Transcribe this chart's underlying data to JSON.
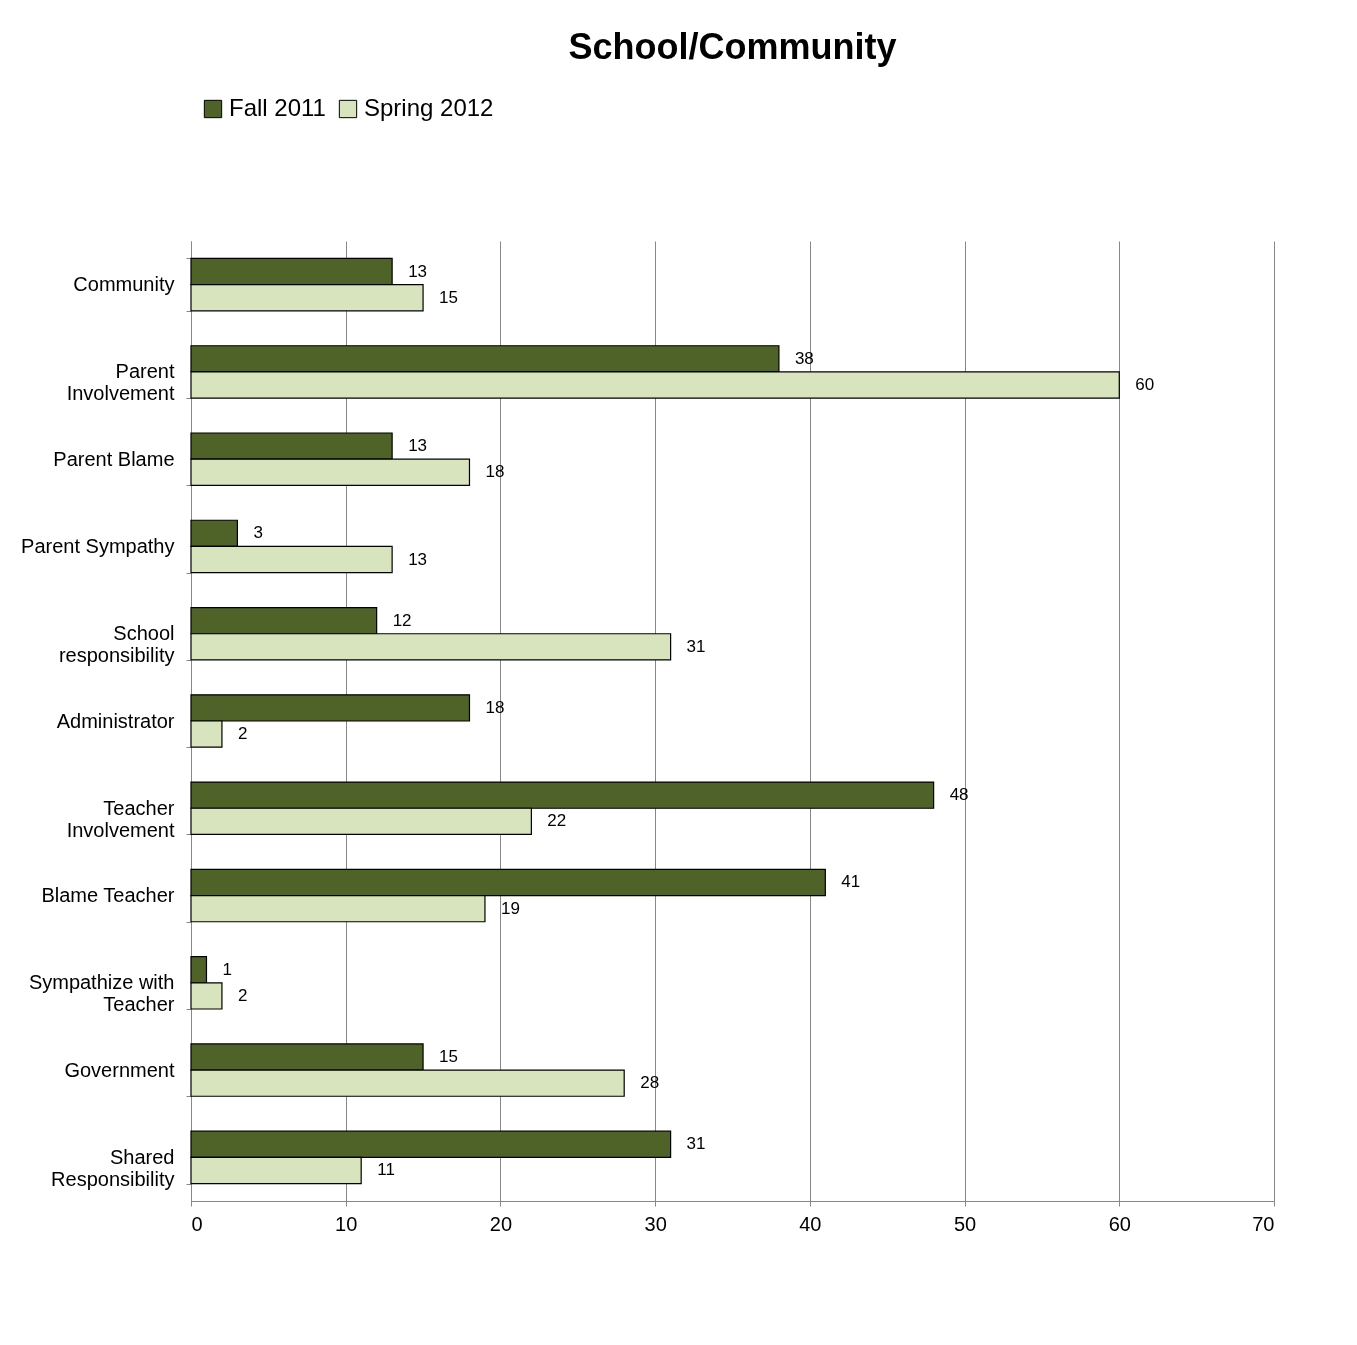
{
  "chart_data": {
    "type": "bar",
    "orientation": "horizontal",
    "title": "School/Community",
    "categories": [
      "Community",
      "Parent Involvement",
      "Parent Blame",
      "Parent Sympathy",
      "School responsibility",
      "Administrator",
      "Teacher Involvement",
      "Blame Teacher",
      "Sympathize with Teacher",
      "Government",
      "Shared Responsibility"
    ],
    "series": [
      {
        "name": "Fall 2011",
        "color": "#4f6228",
        "values": [
          13,
          38,
          13,
          3,
          12,
          18,
          48,
          41,
          1,
          15,
          31
        ]
      },
      {
        "name": "Spring 2012",
        "color": "#d7e4bd",
        "values": [
          15,
          60,
          18,
          13,
          31,
          2,
          22,
          19,
          2,
          28,
          11
        ]
      }
    ],
    "xlim": [
      0,
      70
    ],
    "xticks": [
      0,
      10,
      20,
      30,
      40,
      50,
      60,
      70
    ],
    "grid": "x",
    "legend": "top",
    "data_labels": true
  }
}
